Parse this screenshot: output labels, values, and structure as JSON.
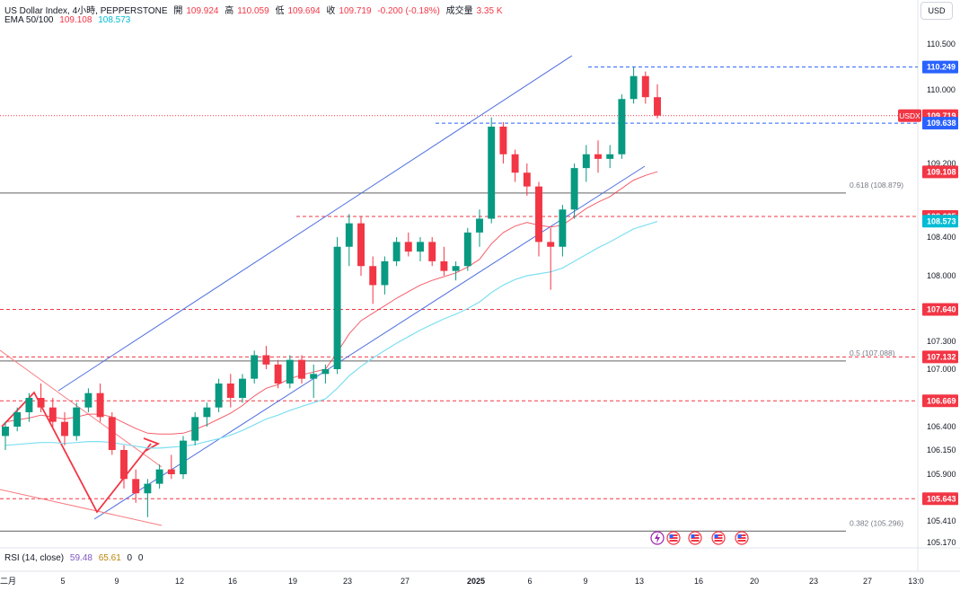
{
  "header": {
    "symbol": "US Dollar Index, 4小時, PEPPERSTONE",
    "open_label": "開",
    "open": "109.924",
    "high_label": "高",
    "high": "110.059",
    "low_label": "低",
    "low": "109.694",
    "close_label": "收",
    "close": "109.719",
    "change": "-0.200 (-0.18%)",
    "volume_label": "成交量",
    "volume": "3.35 K",
    "ema_title": "EMA 50/100",
    "ema50": "109.108",
    "ema100": "108.573"
  },
  "currency_button": "USD",
  "rsi": {
    "title": "RSI (14, close)",
    "v1": "59.48",
    "v2": "65.61",
    "v3": "0",
    "v4": "0"
  },
  "colors": {
    "up": "#089981",
    "down": "#f23645",
    "channel": "#4f6fe0",
    "ema50": "#f23645",
    "ema100": "#7fdff2",
    "fib": "#808080",
    "rsi": "#7e57c2"
  },
  "chart_data": {
    "type": "candlestick",
    "symbol_label": "USDX",
    "price_axis": {
      "ticks": [
        "110.500",
        "110.000",
        "109.200",
        "108.400",
        "108.000",
        "107.300",
        "107.000",
        "106.400",
        "106.150",
        "105.900",
        "105.410",
        "105.170"
      ],
      "range": [
        105.1,
        110.65
      ]
    },
    "time_axis": {
      "labels": [
        "二月",
        "5",
        "9",
        "12",
        "16",
        "19",
        "23",
        "27",
        "2025",
        "6",
        "9",
        "13",
        "16",
        "20",
        "23",
        "27",
        "13:0"
      ]
    },
    "price_tags": [
      {
        "value": "110.249",
        "style": "blue"
      },
      {
        "value": "109.719",
        "style": "red",
        "symbol": "USDX"
      },
      {
        "value": "109.638",
        "style": "blue"
      },
      {
        "value": "109.108",
        "style": "red"
      },
      {
        "value": "108.625",
        "style": "red"
      },
      {
        "value": "108.573",
        "style": "cyan"
      },
      {
        "value": "107.640",
        "style": "red"
      },
      {
        "value": "107.132",
        "style": "red"
      },
      {
        "value": "106.669",
        "style": "red"
      },
      {
        "value": "105.643",
        "style": "red"
      }
    ],
    "horizontal_levels": [
      {
        "price": 110.249,
        "style": "blue-dashed"
      },
      {
        "price": 109.638,
        "style": "blue-dashed"
      },
      {
        "price": 109.719,
        "style": "red-dotted"
      },
      {
        "price": 108.625,
        "style": "red-dashed"
      },
      {
        "price": 107.64,
        "style": "red-dashed"
      },
      {
        "price": 107.132,
        "style": "red-dashed"
      },
      {
        "price": 106.669,
        "style": "red-dashed"
      },
      {
        "price": 105.643,
        "style": "red-dashed"
      }
    ],
    "fib_levels": [
      {
        "label": "0.618 (108.879)",
        "price": 108.879
      },
      {
        "label": "0.5 (107.088)",
        "price": 107.088
      },
      {
        "label": "0.382 (105.296)",
        "price": 105.296
      }
    ],
    "candles": [
      [
        106.3,
        106.45,
        106.15,
        106.4
      ],
      [
        106.4,
        106.6,
        106.35,
        106.55
      ],
      [
        106.55,
        106.75,
        106.45,
        106.7
      ],
      [
        106.7,
        106.85,
        106.55,
        106.6
      ],
      [
        106.6,
        106.7,
        106.4,
        106.45
      ],
      [
        106.45,
        106.55,
        106.2,
        106.3
      ],
      [
        106.3,
        106.65,
        106.25,
        106.6
      ],
      [
        106.6,
        106.8,
        106.55,
        106.75
      ],
      [
        106.75,
        106.85,
        106.45,
        106.5
      ],
      [
        106.5,
        106.55,
        106.1,
        106.15
      ],
      [
        106.15,
        106.2,
        105.75,
        105.85
      ],
      [
        105.85,
        105.95,
        105.6,
        105.7
      ],
      [
        105.7,
        105.85,
        105.45,
        105.8
      ],
      [
        105.8,
        106.0,
        105.75,
        105.95
      ],
      [
        105.95,
        106.1,
        105.85,
        105.9
      ],
      [
        105.9,
        106.3,
        105.85,
        106.25
      ],
      [
        106.25,
        106.55,
        106.2,
        106.5
      ],
      [
        106.5,
        106.65,
        106.4,
        106.6
      ],
      [
        106.6,
        106.9,
        106.55,
        106.85
      ],
      [
        106.85,
        106.95,
        106.6,
        106.7
      ],
      [
        106.7,
        106.95,
        106.65,
        106.9
      ],
      [
        106.9,
        107.2,
        106.85,
        107.15
      ],
      [
        107.15,
        107.25,
        107.0,
        107.05
      ],
      [
        107.05,
        107.1,
        106.8,
        106.85
      ],
      [
        106.85,
        107.15,
        106.8,
        107.1
      ],
      [
        107.1,
        107.15,
        106.85,
        106.9
      ],
      [
        106.9,
        107.05,
        106.7,
        106.95
      ],
      [
        106.95,
        107.05,
        106.85,
        107.0
      ],
      [
        107.0,
        108.4,
        106.95,
        108.3
      ],
      [
        108.3,
        108.65,
        108.1,
        108.55
      ],
      [
        108.55,
        108.62,
        108.0,
        108.1
      ],
      [
        108.1,
        108.2,
        107.7,
        107.9
      ],
      [
        107.9,
        108.2,
        107.8,
        108.15
      ],
      [
        108.15,
        108.4,
        108.1,
        108.35
      ],
      [
        108.35,
        108.45,
        108.2,
        108.25
      ],
      [
        108.25,
        108.4,
        108.15,
        108.35
      ],
      [
        108.35,
        108.4,
        108.1,
        108.15
      ],
      [
        108.15,
        108.3,
        108.0,
        108.05
      ],
      [
        108.05,
        108.15,
        107.95,
        108.1
      ],
      [
        108.1,
        108.5,
        108.05,
        108.45
      ],
      [
        108.45,
        108.7,
        108.3,
        108.6
      ],
      [
        108.6,
        109.7,
        108.55,
        109.6
      ],
      [
        109.6,
        109.65,
        109.2,
        109.3
      ],
      [
        109.3,
        109.35,
        109.0,
        109.1
      ],
      [
        109.1,
        109.2,
        108.85,
        108.95
      ],
      [
        108.95,
        109.0,
        108.2,
        108.35
      ],
      [
        108.35,
        108.5,
        107.85,
        108.3
      ],
      [
        108.3,
        108.75,
        108.2,
        108.7
      ],
      [
        108.7,
        109.2,
        108.6,
        109.15
      ],
      [
        109.15,
        109.4,
        109.0,
        109.3
      ],
      [
        109.3,
        109.45,
        109.1,
        109.25
      ],
      [
        109.25,
        109.4,
        109.15,
        109.3
      ],
      [
        109.3,
        109.95,
        109.25,
        109.9
      ],
      [
        109.9,
        110.25,
        109.85,
        110.15
      ],
      [
        110.15,
        110.2,
        109.85,
        109.92
      ],
      [
        109.92,
        110.06,
        109.69,
        109.72
      ]
    ],
    "ema50": [
      106.45,
      106.47,
      106.49,
      106.52,
      106.5,
      106.48,
      106.5,
      106.53,
      106.53,
      106.5,
      106.44,
      106.38,
      106.33,
      106.32,
      106.32,
      106.33,
      106.37,
      106.42,
      106.48,
      106.54,
      106.62,
      106.72,
      106.8,
      106.84,
      106.9,
      106.94,
      106.97,
      107.0,
      107.18,
      107.38,
      107.52,
      107.6,
      107.68,
      107.76,
      107.83,
      107.9,
      107.95,
      107.99,
      108.03,
      108.09,
      108.17,
      108.33,
      108.45,
      108.52,
      108.56,
      108.53,
      108.51,
      108.53,
      108.62,
      108.71,
      108.78,
      108.84,
      108.93,
      109.02,
      109.07,
      109.11
    ],
    "ema100": [
      106.2,
      106.21,
      106.22,
      106.23,
      106.23,
      106.22,
      106.23,
      106.24,
      106.24,
      106.23,
      106.21,
      106.19,
      106.17,
      106.17,
      106.18,
      106.19,
      106.21,
      106.24,
      106.27,
      106.31,
      106.36,
      106.42,
      106.48,
      106.52,
      106.57,
      106.61,
      106.65,
      106.69,
      106.8,
      106.93,
      107.03,
      107.12,
      107.2,
      107.28,
      107.35,
      107.42,
      107.48,
      107.54,
      107.59,
      107.65,
      107.72,
      107.82,
      107.9,
      107.96,
      108.0,
      108.02,
      108.04,
      108.08,
      108.15,
      108.22,
      108.29,
      108.35,
      108.42,
      108.49,
      108.53,
      108.57
    ]
  }
}
